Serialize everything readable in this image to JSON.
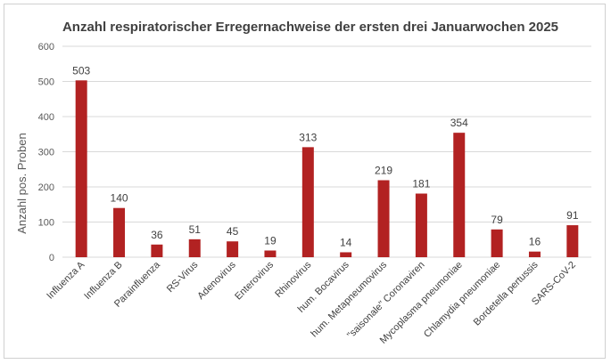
{
  "chart_data": {
    "type": "bar",
    "title": "Anzahl respiratorischer Erregernachweise der ersten drei Januarwochen 2025",
    "xlabel": "",
    "ylabel": "Anzahl pos. Proben",
    "ylim": [
      0,
      600
    ],
    "yticks": [
      0,
      100,
      200,
      300,
      400,
      500,
      600
    ],
    "grid": true,
    "bar_color": "#b22222",
    "categories": [
      "Influenza A",
      "Influenza B",
      "Parainfluenza",
      "RS-Virus",
      "Adenovirus",
      "Enterovirus",
      "Rhinovirus",
      "hum. Bocavirus",
      "hum. Metapneumovirus",
      "\"saisonale\" Coronaviren",
      "Mycoplasma pneumoniae",
      "Chlamydia pneumoniae",
      "Bordetella pertussis",
      "SARS-CoV-2"
    ],
    "values": [
      503,
      140,
      36,
      51,
      45,
      19,
      313,
      14,
      219,
      181,
      354,
      79,
      16,
      91
    ]
  }
}
